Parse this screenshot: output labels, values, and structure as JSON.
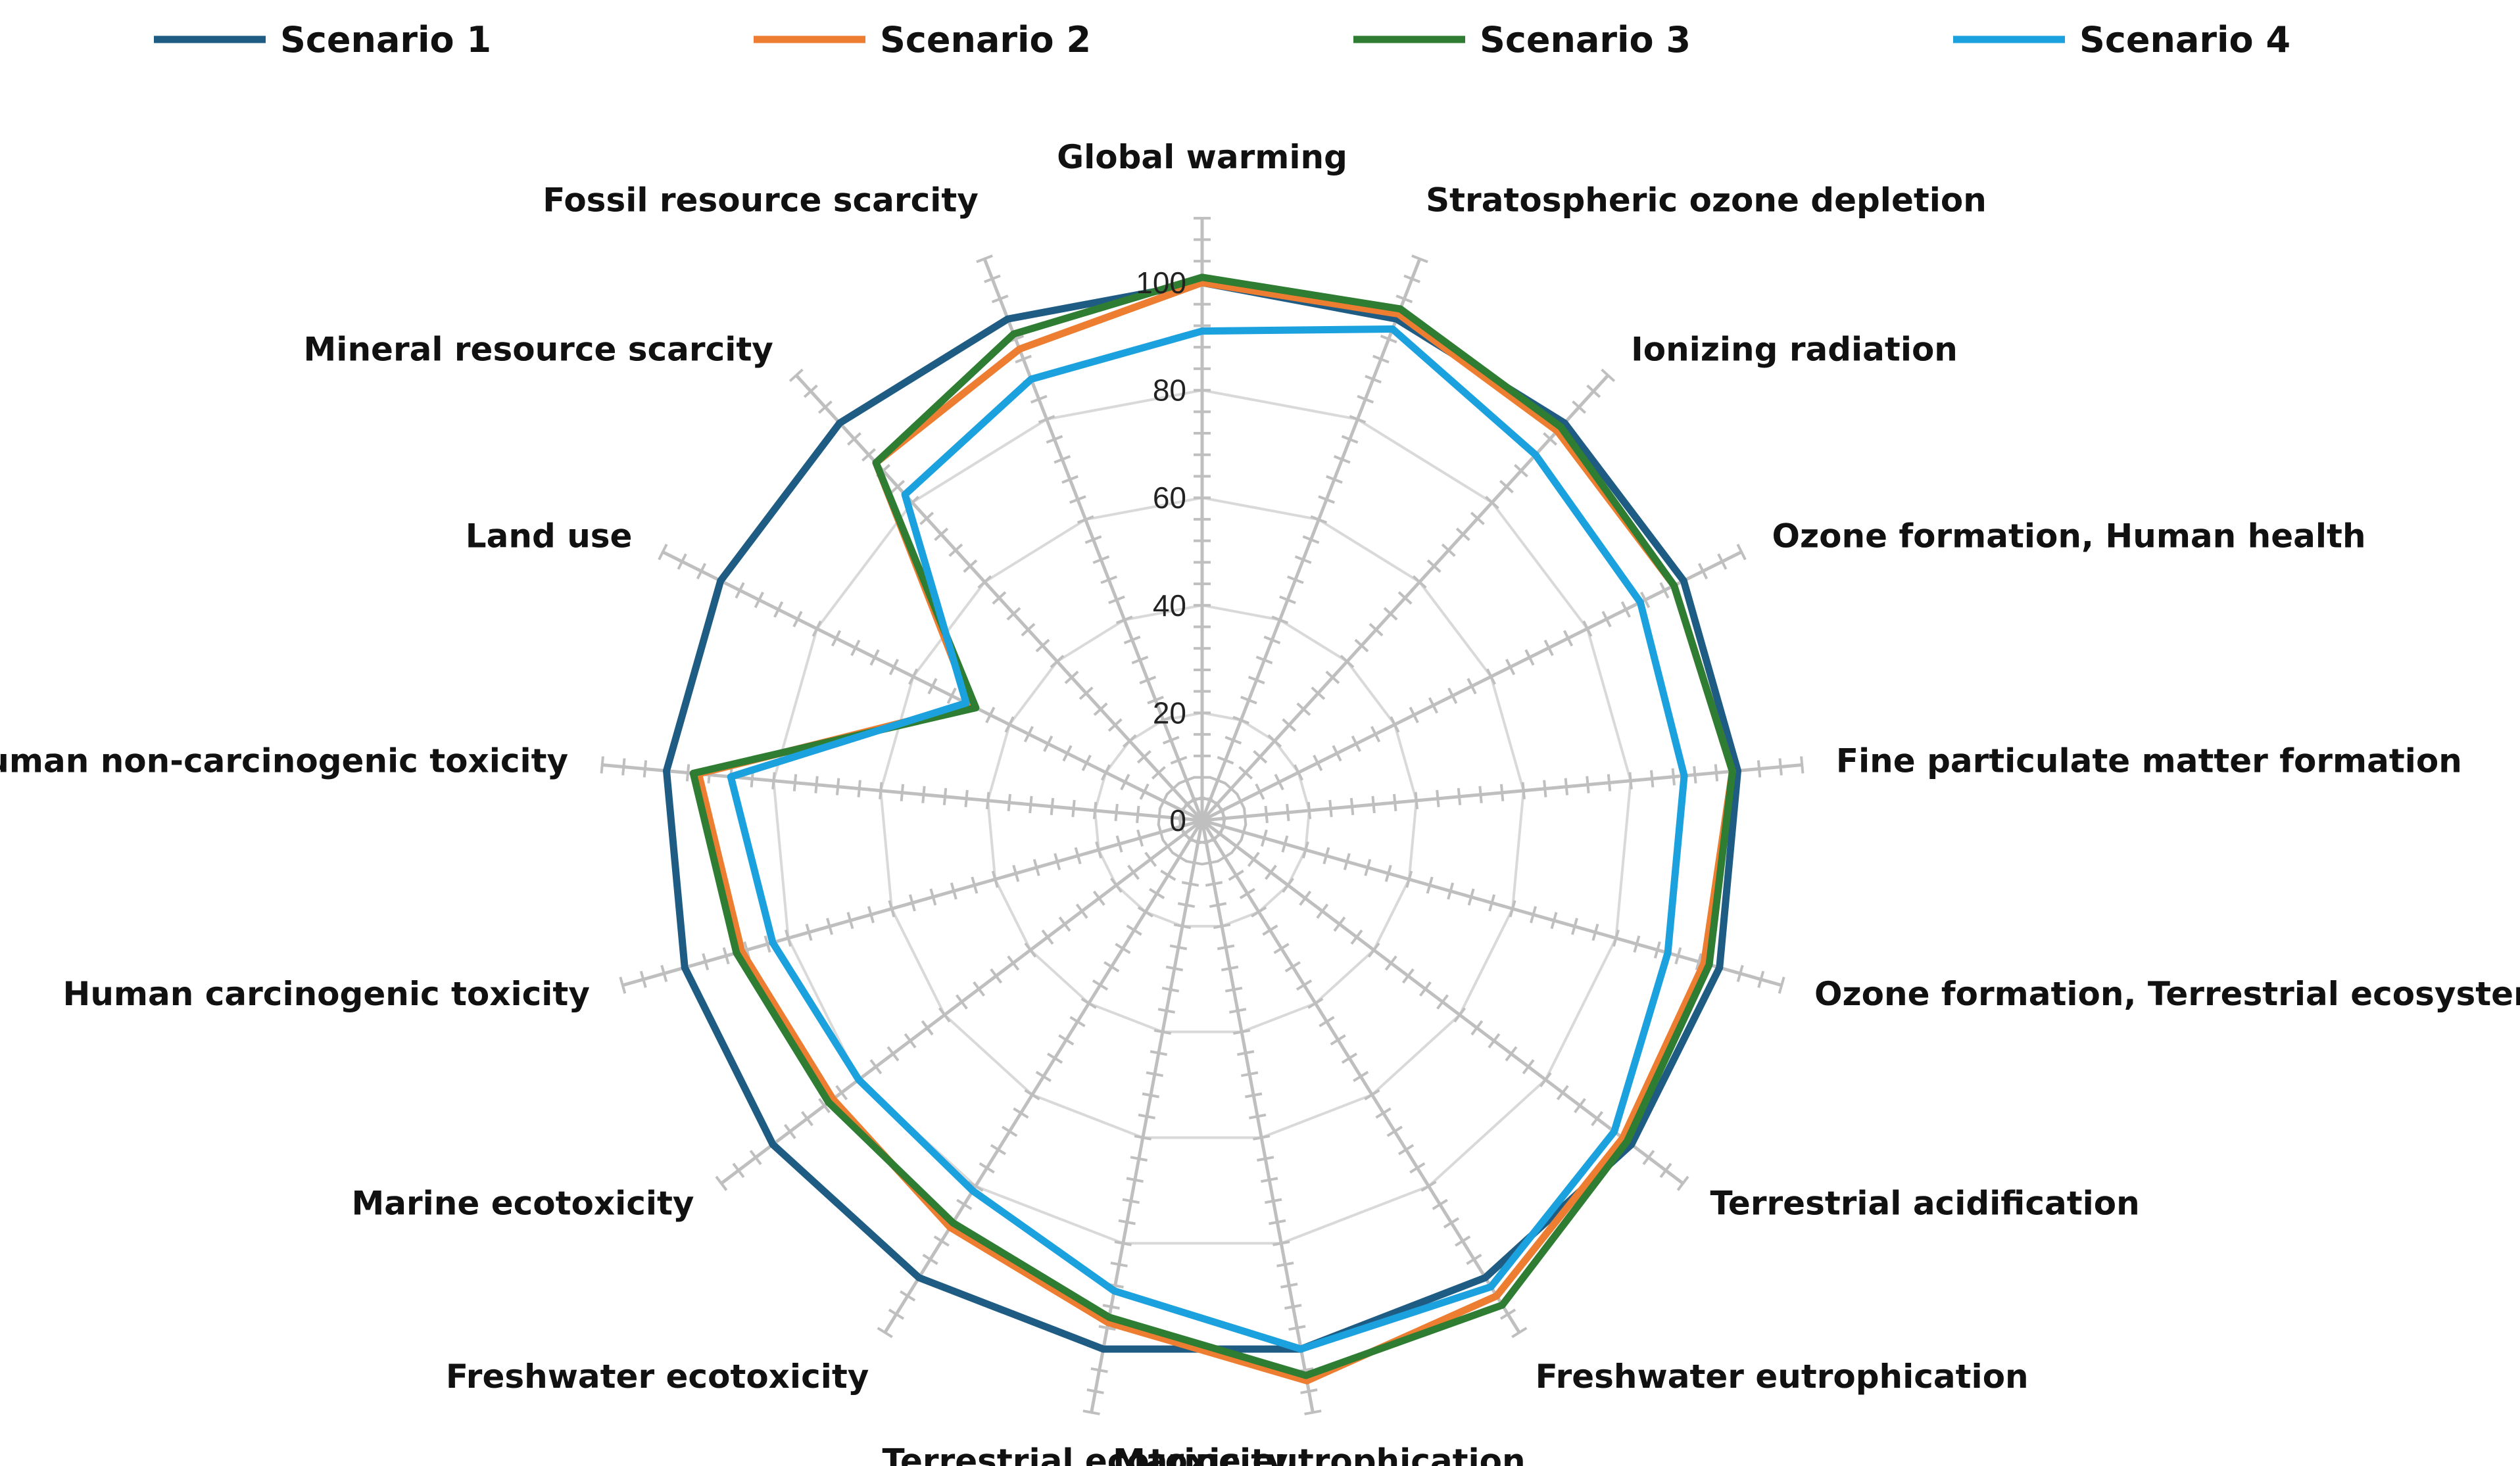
{
  "chart_data": {
    "type": "radar",
    "title": "",
    "axes": [
      "Global warming",
      "Stratospheric ozone depletion",
      "Ionizing radiation",
      "Ozone formation, Human health",
      "Fine particulate matter formation",
      "Ozone formation, Terrestrial ecosystems",
      "Terrestrial acidification",
      "Freshwater eutrophication",
      "Marine eutrophication",
      "Terrestrial ecotoxicity",
      "Freshwater ecotoxicity",
      "Marine ecotoxicity",
      "Human carcinogenic toxicity",
      "Human non-carcinogenic toxicity",
      "Land use",
      "Mineral resource scarcity",
      "Fossil resource scarcity"
    ],
    "rlim": [
      0,
      100
    ],
    "ticks": [
      0,
      20,
      40,
      60,
      80,
      100
    ],
    "tick_labels": [
      "0",
      "20",
      "40",
      "60",
      "80",
      "100"
    ],
    "minor_tick_step": 4,
    "legend_position": "top",
    "grid": true,
    "series": [
      {
        "name": "Scenario 1",
        "color": "#1F5C84",
        "values": [
          100,
          100,
          100,
          100,
          100,
          100,
          100,
          100,
          100,
          100,
          100,
          100,
          100,
          100,
          100,
          100,
          100
        ]
      },
      {
        "name": "Scenario 2",
        "color": "#ED7D31",
        "values": [
          100,
          101,
          98,
          98,
          99,
          97,
          98,
          104,
          106,
          95,
          89,
          86,
          89,
          94,
          48,
          90,
          94
        ]
      },
      {
        "name": "Scenario 3",
        "color": "#2E7D32",
        "values": [
          101,
          102,
          99,
          98,
          99,
          98,
          99,
          106,
          105,
          94,
          88,
          87,
          90,
          95,
          47,
          90,
          97
        ]
      },
      {
        "name": "Scenario 4",
        "color": "#1BA1DE",
        "values": [
          91,
          98,
          92,
          91,
          90,
          90,
          96,
          102,
          100,
          89,
          81,
          80,
          83,
          88,
          49,
          82,
          88
        ]
      }
    ]
  }
}
